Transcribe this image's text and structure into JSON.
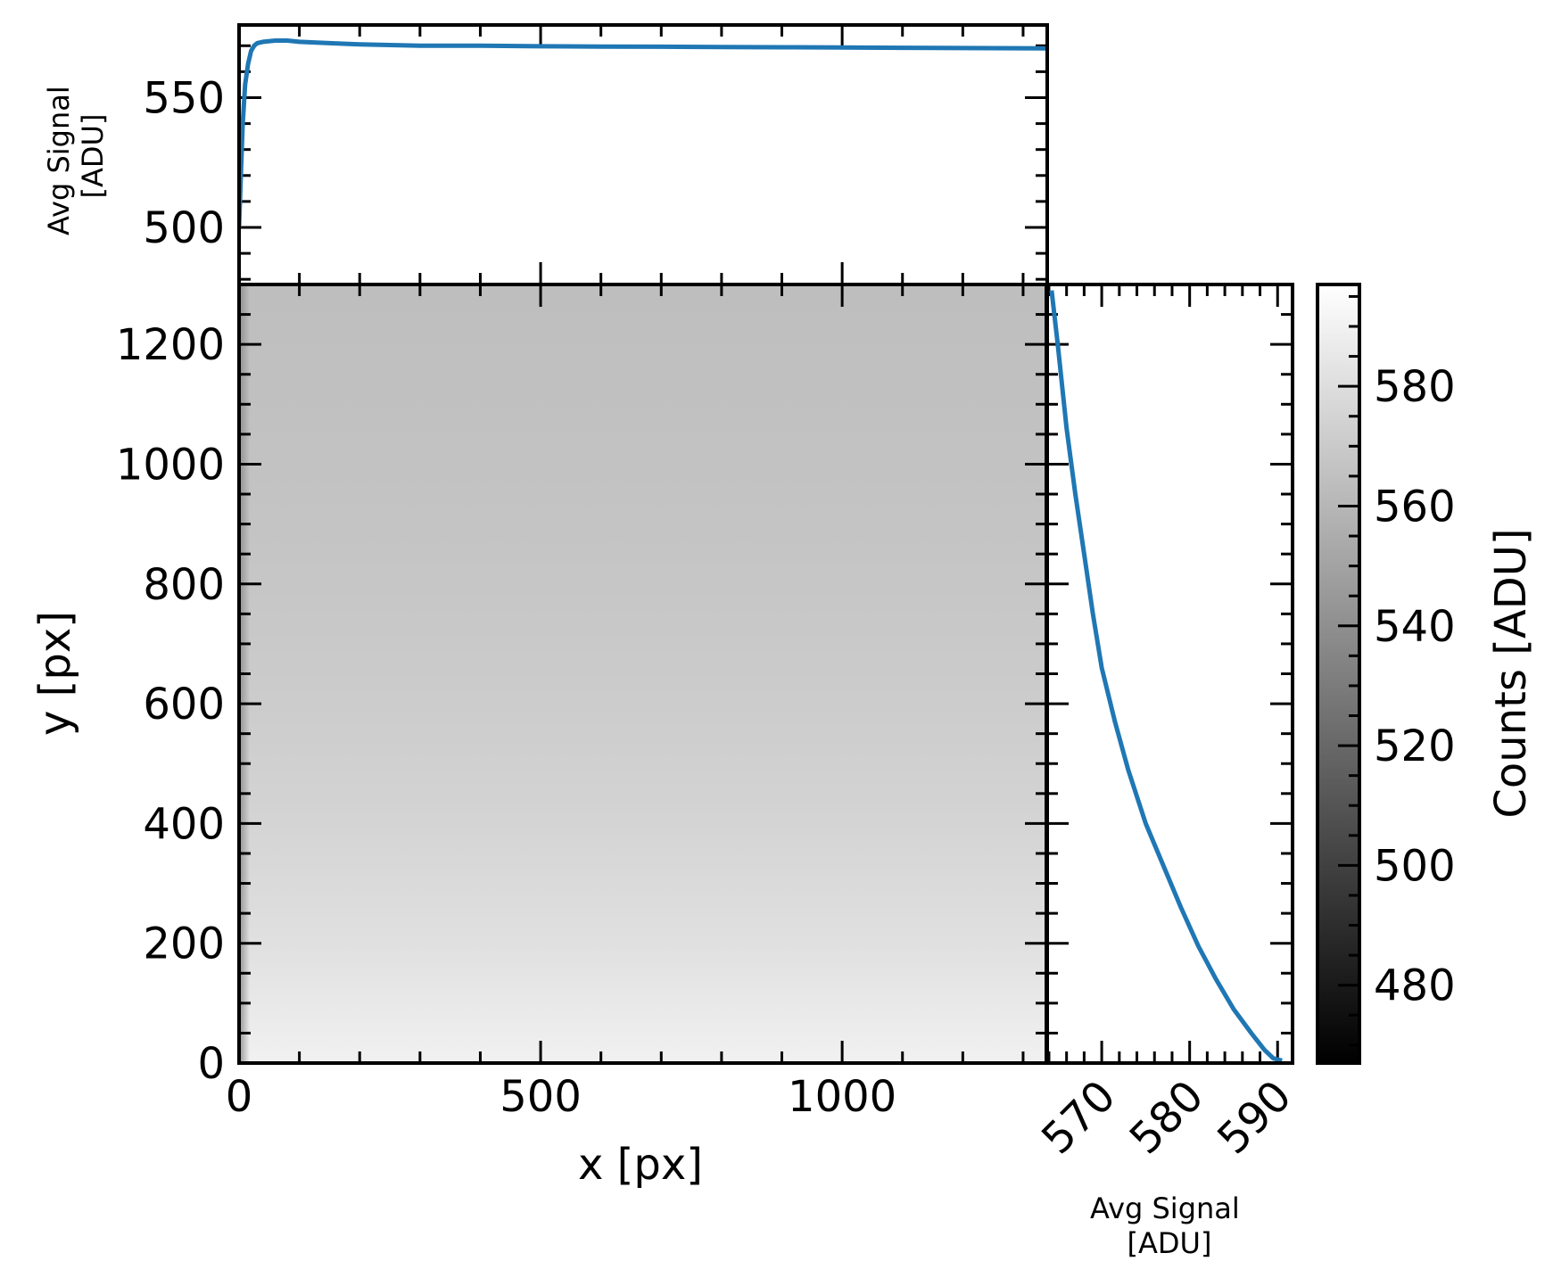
{
  "chart_data": [
    {
      "panel": "image",
      "type": "heatmap",
      "xlabel": "x [px]",
      "ylabel": "y [px]",
      "xlim": [
        0,
        1340
      ],
      "ylim": [
        0,
        1300
      ],
      "xticks": [
        0,
        500,
        1000
      ],
      "yticks": [
        0,
        200,
        400,
        600,
        800,
        1000,
        1200
      ],
      "xtick_labels": [
        "0",
        "500",
        "1000"
      ],
      "ytick_labels": [
        "0",
        "200",
        "400",
        "600",
        "800",
        "1000",
        "1200"
      ],
      "colormap": "gray",
      "values_at_y": [
        {
          "y": 0,
          "value": 590
        },
        {
          "y": 200,
          "value": 581
        },
        {
          "y": 400,
          "value": 575
        },
        {
          "y": 600,
          "value": 571
        },
        {
          "y": 800,
          "value": 568
        },
        {
          "y": 1000,
          "value": 566
        },
        {
          "y": 1300,
          "value": 564
        }
      ],
      "left_edge_dark_band": true
    },
    {
      "panel": "top-profile",
      "type": "line",
      "ylabel": "Avg Signal\n[ADU]",
      "xlim": [
        0,
        1340
      ],
      "ylim": [
        478,
        578
      ],
      "yticks": [
        500,
        550
      ],
      "ytick_labels": [
        "500",
        "550"
      ],
      "x": [
        0,
        3,
        6,
        10,
        15,
        20,
        25,
        30,
        40,
        60,
        80,
        100,
        150,
        200,
        300,
        400,
        500,
        600,
        700,
        800,
        900,
        1000,
        1100,
        1200,
        1340
      ],
      "y": [
        500,
        520,
        540,
        555,
        563,
        568,
        570,
        571,
        571.5,
        572,
        572,
        571.5,
        571,
        570.5,
        570,
        570,
        569.8,
        569.7,
        569.6,
        569.5,
        569.4,
        569.3,
        569.2,
        569.1,
        569
      ],
      "color": "#1f77b4"
    },
    {
      "panel": "right-profile",
      "type": "line",
      "xlabel": "Avg Signal\n[ADU]",
      "xlim": [
        563.7,
        591.7
      ],
      "ylim": [
        0,
        1300
      ],
      "xticks": [
        570,
        580,
        590
      ],
      "xtick_labels": [
        "570",
        "580",
        "590"
      ],
      "x": [
        564.3,
        565,
        566,
        567,
        568,
        569,
        570,
        571.5,
        573,
        575,
        577,
        579,
        581,
        583,
        585,
        587,
        588.5,
        589.5,
        590.5
      ],
      "y": [
        1290,
        1200,
        1060,
        950,
        850,
        750,
        660,
        570,
        490,
        400,
        330,
        260,
        195,
        140,
        90,
        50,
        22,
        8,
        4
      ],
      "color": "#1f77b4"
    },
    {
      "panel": "colorbar",
      "type": "colorbar",
      "label": "Counts [ADU]",
      "vmin": 467,
      "vmax": 597,
      "ticks": [
        480,
        500,
        520,
        540,
        560,
        580
      ],
      "tick_labels": [
        "480",
        "500",
        "520",
        "540",
        "560",
        "580"
      ],
      "colormap": "gray"
    }
  ]
}
